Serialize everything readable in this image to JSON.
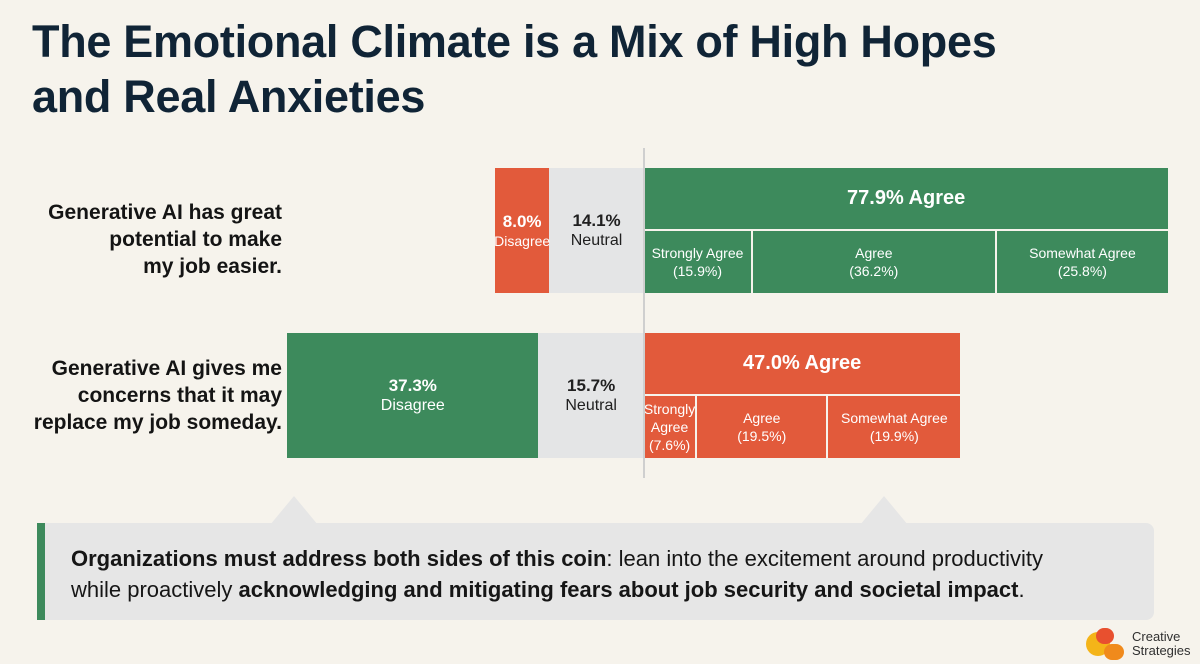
{
  "title_line1": "The Emotional Climate is a Mix of High Hopes",
  "title_line2": "and Real Anxieties",
  "colors": {
    "positive": "#3d8a5c",
    "negative": "#e25a3b",
    "neutral": "#e4e5e6"
  },
  "chart_data": {
    "type": "bar",
    "subtype": "diverging-stacked",
    "rows": [
      {
        "question_lines": [
          "Generative AI has great",
          "potential to make",
          "my job easier."
        ],
        "disagree": {
          "value": 8.0,
          "pct_label": "8.0%",
          "label": "Disagree",
          "color": "#e25a3b"
        },
        "neutral": {
          "value": 14.1,
          "pct_label": "14.1%",
          "label": "Neutral"
        },
        "agree_total": {
          "value": 77.9,
          "label": "77.9% Agree",
          "color": "#3d8a5c"
        },
        "agree_breakdown": [
          {
            "value": 15.9,
            "label_lines": [
              "Strongly Agree",
              "(15.9%)"
            ]
          },
          {
            "value": 36.2,
            "label_lines": [
              "Agree",
              "(36.2%)"
            ]
          },
          {
            "value": 25.8,
            "label_lines": [
              "Somewhat Agree",
              "(25.8%)"
            ]
          }
        ]
      },
      {
        "question_lines": [
          "Generative AI gives me",
          "concerns that it may",
          "replace my job someday."
        ],
        "disagree": {
          "value": 37.3,
          "pct_label": "37.3%",
          "label": "Disagree",
          "color": "#3d8a5c"
        },
        "neutral": {
          "value": 15.7,
          "pct_label": "15.7%",
          "label": "Neutral"
        },
        "agree_total": {
          "value": 47.0,
          "label": "47.0% Agree",
          "color": "#e25a3b"
        },
        "agree_breakdown": [
          {
            "value": 7.6,
            "label_lines": [
              "Strongly",
              "Agree",
              "(7.6%)"
            ]
          },
          {
            "value": 19.5,
            "label_lines": [
              "Agree",
              "(19.5%)"
            ]
          },
          {
            "value": 19.9,
            "label_lines": [
              "Somewhat Agree",
              "(19.9%)"
            ]
          }
        ]
      }
    ]
  },
  "callout": {
    "bold1": "Organizations must address both sides of this coin",
    "text1": ": lean into the excitement around productivity",
    "text2": "while proactively ",
    "bold2": "acknowledging and mitigating fears about job security and societal impact",
    "text3": "."
  },
  "logo": {
    "line1": "Creative",
    "line2": "Strategies"
  }
}
